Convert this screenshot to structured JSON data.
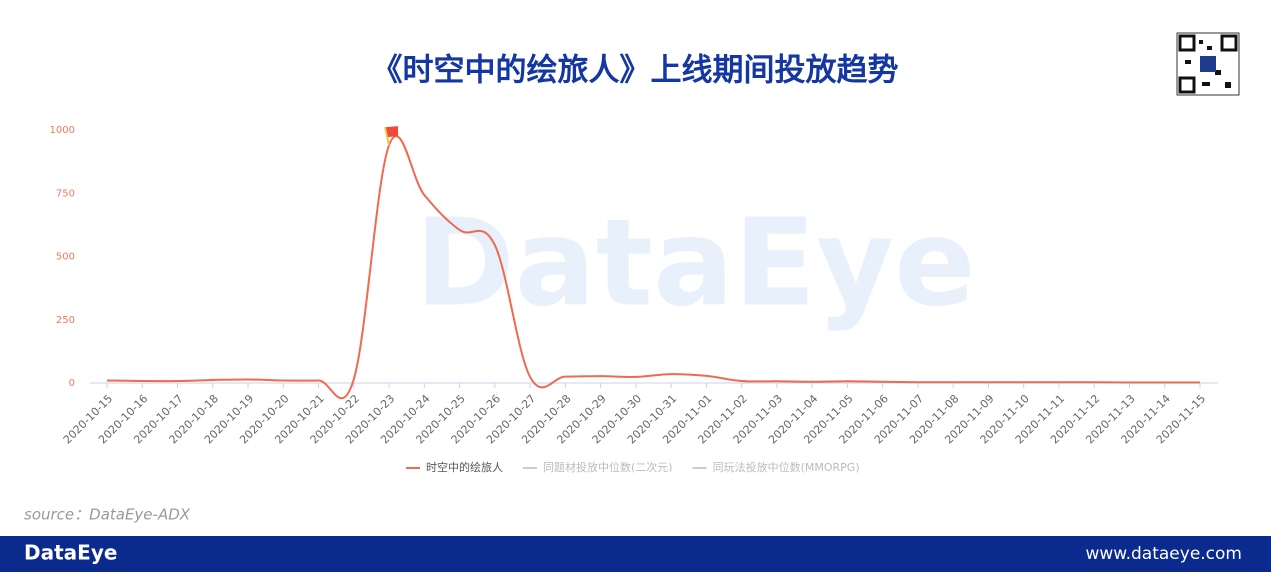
{
  "header": {
    "title": "《时空中的绘旅人》上线期间投放趋势"
  },
  "watermark": "DataEye",
  "chart_data": {
    "type": "line",
    "categories": [
      "2020-10-15",
      "2020-10-16",
      "2020-10-17",
      "2020-10-18",
      "2020-10-19",
      "2020-10-20",
      "2020-10-21",
      "2020-10-22",
      "2020-10-23",
      "2020-10-24",
      "2020-10-25",
      "2020-10-26",
      "2020-10-27",
      "2020-10-28",
      "2020-10-29",
      "2020-10-30",
      "2020-10-31",
      "2020-11-01",
      "2020-11-02",
      "2020-11-03",
      "2020-11-04",
      "2020-11-05",
      "2020-11-06",
      "2020-11-07",
      "2020-11-08",
      "2020-11-09",
      "2020-11-10",
      "2020-11-11",
      "2020-11-12",
      "2020-11-13",
      "2020-11-14",
      "2020-11-15"
    ],
    "series": [
      {
        "name": "时空中的绘旅人",
        "color": "#ee6a50",
        "values": [
          10,
          8,
          8,
          12,
          14,
          10,
          10,
          15,
          940,
          743,
          605,
          545,
          24,
          25,
          27,
          24,
          35,
          28,
          8,
          7,
          5,
          7,
          5,
          3,
          3,
          3,
          3,
          3,
          3,
          2,
          2,
          2
        ]
      }
    ],
    "hidden_legend": [
      {
        "name": "同题材投放中位数(二次元)",
        "color": "#cccccc"
      },
      {
        "name": "同玩法投放中位数(MMORPG)",
        "color": "#cccccc"
      }
    ],
    "ylim": [
      0,
      1000
    ],
    "yticks": [
      0,
      250,
      500,
      750,
      1000
    ],
    "tick_color": "#f07a5a"
  },
  "source": "source：DataEye-ADX",
  "footer": {
    "brand": "DataEye",
    "url": "www.dataeye.com"
  }
}
